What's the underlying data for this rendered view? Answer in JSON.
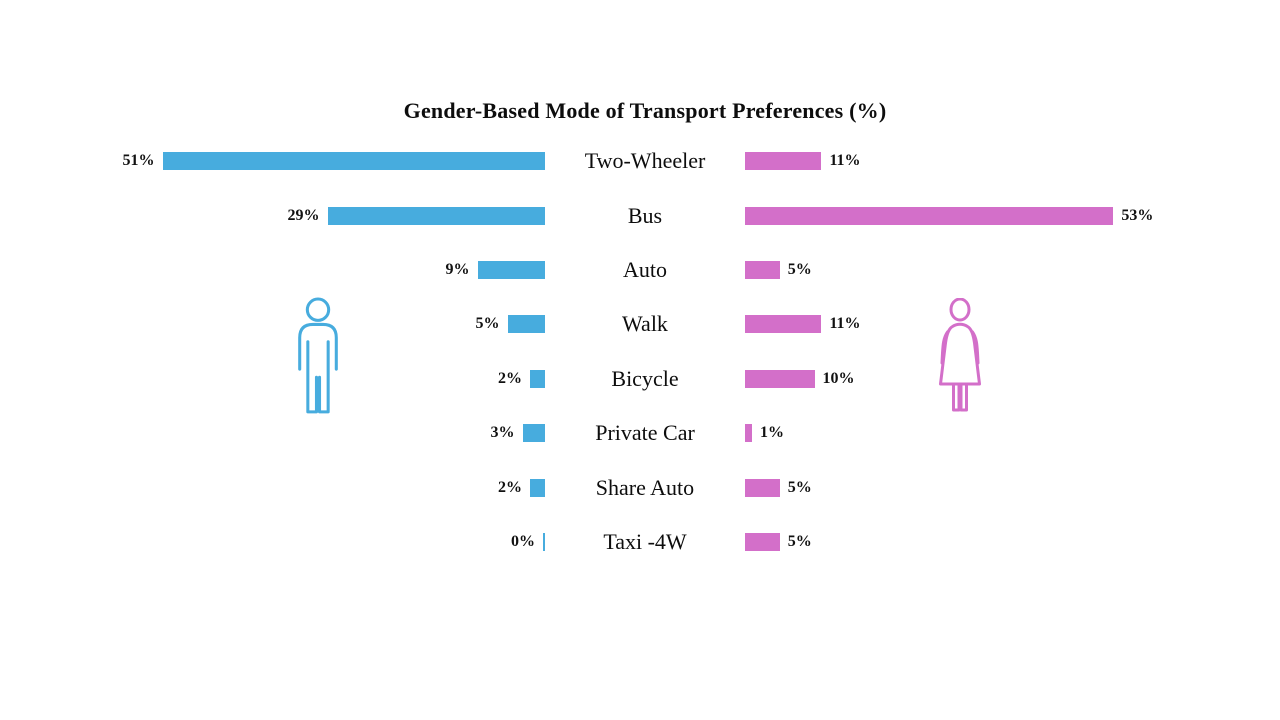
{
  "title": "Gender-Based Mode of Transport Preferences (%)",
  "colors": {
    "male": "#47ACDE",
    "female": "#D36FC9",
    "text": "#111111",
    "background": "#FFFFFF"
  },
  "icons": {
    "male": "male-person-outline-icon",
    "female": "female-person-outline-icon"
  },
  "chart_data": {
    "type": "bar",
    "subtype": "butterfly-tornado",
    "title": "Gender-Based Mode of Transport Preferences (%)",
    "categories": [
      "Two-Wheeler",
      "Bus",
      "Auto",
      "Walk",
      "Bicycle",
      "Private Car",
      "Share Auto",
      "Taxi -4W"
    ],
    "series": [
      {
        "name": "Male",
        "side": "left",
        "color": "#47ACDE",
        "values": [
          51,
          29,
          9,
          5,
          2,
          3,
          2,
          0
        ]
      },
      {
        "name": "Female",
        "side": "right",
        "color": "#D36FC9",
        "values": [
          11,
          53,
          5,
          11,
          10,
          1,
          5,
          5
        ]
      }
    ],
    "value_suffix": "%",
    "value_labels_visible": true,
    "axis_visible": false,
    "grid": false,
    "legend": "none",
    "xlim_left": [
      0,
      55
    ],
    "xlim_right": [
      0,
      55
    ]
  }
}
